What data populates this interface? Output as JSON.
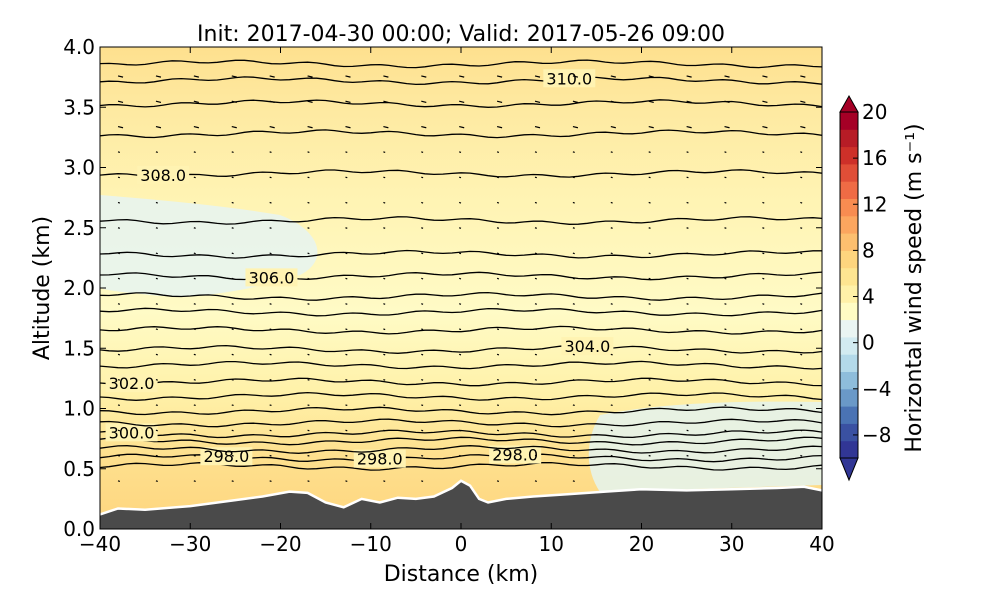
{
  "chart_data": {
    "type": "heatmap",
    "title": "Init: 2017-04-30 00:00; Valid: 2017-05-26 09:00",
    "xlabel": "Distance (km)",
    "ylabel": "Altitude (km)",
    "xlim": [
      -40,
      40
    ],
    "ylim": [
      0.0,
      4.0
    ],
    "xticks": [
      -40,
      -30,
      -20,
      -10,
      0,
      10,
      20,
      30,
      40
    ],
    "xtick_labels": [
      "−40",
      "−30",
      "−20",
      "−10",
      "0",
      "10",
      "20",
      "30",
      "40"
    ],
    "yticks": [
      0.0,
      0.5,
      1.0,
      1.5,
      2.0,
      2.5,
      3.0,
      3.5,
      4.0
    ],
    "ytick_labels": [
      "0.0",
      "0.5",
      "1.0",
      "1.5",
      "2.0",
      "2.5",
      "3.0",
      "3.5",
      "4.0"
    ],
    "colorbar": {
      "label": "Horizontal wind speed (m s⁻¹)",
      "min": -10,
      "max": 20,
      "step": 1,
      "ticks": [
        20,
        16,
        12,
        8,
        4,
        0,
        -4,
        -8
      ],
      "tick_labels": [
        "20",
        "16",
        "12",
        "8",
        "4",
        "0",
        "−4",
        "−8"
      ],
      "extend": "both",
      "colors": [
        "#313695",
        "#3a51a2",
        "#4a73b4",
        "#6a99c8",
        "#8ebddb",
        "#b3d9e9",
        "#d2ebf1",
        "#eaf5f3",
        "#fffcc4",
        "#fff1a8",
        "#fee591",
        "#fed57e",
        "#fdbf6f",
        "#fca65f",
        "#f88c51",
        "#ef6b45",
        "#e04e37",
        "#cd3029",
        "#b71c26",
        "#a50026"
      ]
    },
    "terrain": {
      "color": "#4a4a4a",
      "x": [
        -40,
        -38,
        -35,
        -30,
        -25,
        -22,
        -19,
        -17,
        -15,
        -13,
        -11,
        -9,
        -7,
        -5,
        -3,
        -1,
        0,
        1,
        2,
        3,
        5,
        8,
        12,
        16,
        20,
        25,
        30,
        35,
        38,
        40
      ],
      "alt": [
        0.12,
        0.17,
        0.16,
        0.19,
        0.24,
        0.27,
        0.31,
        0.3,
        0.22,
        0.18,
        0.25,
        0.22,
        0.26,
        0.25,
        0.27,
        0.34,
        0.4,
        0.36,
        0.25,
        0.22,
        0.25,
        0.27,
        0.29,
        0.31,
        0.33,
        0.32,
        0.33,
        0.34,
        0.35,
        0.32
      ]
    },
    "theta_contours": [
      {
        "alt": 0.52,
        "label": ""
      },
      {
        "alt": 0.59,
        "label": "298.0",
        "label_x": [
          -26,
          -9,
          6
        ]
      },
      {
        "alt": 0.66,
        "label": ""
      },
      {
        "alt": 0.73,
        "label": ""
      },
      {
        "alt": 0.79,
        "label": "300.0",
        "label_x": [
          -36.5
        ]
      },
      {
        "alt": 0.88,
        "label": ""
      },
      {
        "alt": 0.98,
        "label": ""
      },
      {
        "alt": 1.1,
        "label": ""
      },
      {
        "alt": 1.22,
        "label": "302.0",
        "label_x": [
          -36.5
        ]
      },
      {
        "alt": 1.36,
        "label": ""
      },
      {
        "alt": 1.49,
        "label": "304.0",
        "label_x": [
          14
        ]
      },
      {
        "alt": 1.65,
        "label": ""
      },
      {
        "alt": 1.8,
        "label": ""
      },
      {
        "alt": 1.93,
        "label": ""
      },
      {
        "alt": 2.1,
        "label": "306.0",
        "label_x": [
          -21
        ]
      },
      {
        "alt": 2.28,
        "label": ""
      },
      {
        "alt": 2.56,
        "label": ""
      },
      {
        "alt": 2.95,
        "label": "308.0",
        "label_x": [
          -33
        ]
      },
      {
        "alt": 3.28,
        "label": ""
      },
      {
        "alt": 3.53,
        "label": ""
      },
      {
        "alt": 3.72,
        "label": "310.0",
        "label_x": [
          12
        ]
      },
      {
        "alt": 3.86,
        "label": ""
      }
    ]
  }
}
